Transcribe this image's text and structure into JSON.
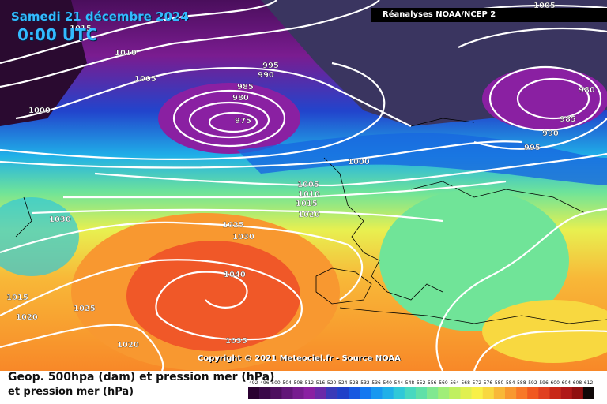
{
  "header": {
    "date": "Samedi 21 décembre 2024",
    "time": "0:00 UTC",
    "source": "Réanalyses NOAA/NCEP 2"
  },
  "footer": {
    "copyright": "Copyright © 2021 Meteociel.fr - Source NOAA",
    "caption_line1": "Geop. 500hpa (dam) et pression mer (hPa)",
    "caption_line2": "et pression mer (hPa)"
  },
  "isobar_labels": {
    "l1005a": "1005",
    "l1010a": "1010",
    "l1005b": "1005",
    "l1000a": "1000",
    "l995": "995",
    "l990": "990",
    "l985": "985",
    "l980": "980",
    "l975": "975",
    "l980e": "980",
    "l985e": "985",
    "l990e": "990",
    "l995e": "995",
    "l1000b": "1000",
    "l1005c": "1005",
    "l1010b": "1010",
    "l1015a": "1015",
    "l1020a": "1020",
    "l1030a": "1030",
    "l1025a": "1025",
    "l1030b": "1030",
    "l1040": "1040",
    "l1015b": "1015",
    "l1025b": "1025",
    "l1020b": "1020",
    "l1020c": "1020",
    "l1035": "1035",
    "l1015c": "1015",
    "l1005d": "1005"
  },
  "scale": {
    "ticks": [
      "492",
      "496",
      "500",
      "504",
      "508",
      "512",
      "516",
      "520",
      "524",
      "528",
      "532",
      "536",
      "540",
      "544",
      "548",
      "552",
      "556",
      "560",
      "564",
      "568",
      "572",
      "576",
      "580",
      "584",
      "588",
      "592",
      "596",
      "600",
      "604",
      "608",
      "612"
    ],
    "colors": [
      "#2a0030",
      "#3a0848",
      "#4d0f5e",
      "#621678",
      "#771c8f",
      "#8a20a2",
      "#6a2aa8",
      "#3a3ab8",
      "#2040c8",
      "#1858e0",
      "#1478f0",
      "#1898f0",
      "#20b0e8",
      "#30c8d8",
      "#48d8c0",
      "#60e0a8",
      "#80e890",
      "#a0ee78",
      "#c0f060",
      "#e0f050",
      "#f8f048",
      "#f8d840",
      "#f8b838",
      "#f89830",
      "#f87828",
      "#f05820",
      "#e04020",
      "#c82818",
      "#b01818",
      "#901010",
      "#100808"
    ]
  }
}
